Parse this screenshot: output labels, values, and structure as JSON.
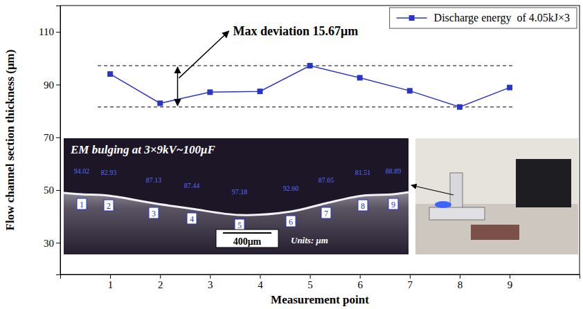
{
  "chart_data": {
    "type": "line",
    "x_label": "Measurement point",
    "y_label": "Flow channel section thickness (μm)",
    "x": [
      1,
      2,
      3,
      4,
      5,
      6,
      7,
      8,
      9
    ],
    "series": [
      {
        "name": "Discharge energy  of 4.05kJ×3",
        "color": "#2a35c8",
        "values": [
          94.02,
          82.93,
          87.13,
          87.44,
          97.18,
          92.6,
          87.65,
          81.51,
          88.89
        ],
        "marker": "square",
        "line_style": "solid"
      }
    ],
    "xlim": [
      0,
      10.4
    ],
    "ylim": [
      18,
      120
    ],
    "xticks": [
      1,
      2,
      3,
      4,
      5,
      6,
      7,
      8,
      9
    ],
    "yticks": [
      30,
      50,
      70,
      90,
      110
    ],
    "legend": "upper right",
    "reference_lines": [
      97.18,
      81.51
    ],
    "annotations": [
      "Max deviation 15.67μm"
    ],
    "inset": {
      "title": "EM bulging at 3×9kV~100μF",
      "readings": [
        "94.02",
        "82.93",
        "87.13",
        "87.44",
        "97.18",
        "92.60",
        "87.65",
        "81.51",
        "88.89"
      ],
      "point_labels": [
        "1",
        "2",
        "3",
        "4",
        "5",
        "6",
        "7",
        "8",
        "9"
      ],
      "scale_bar": "400μm",
      "units": "Units: μm"
    }
  }
}
